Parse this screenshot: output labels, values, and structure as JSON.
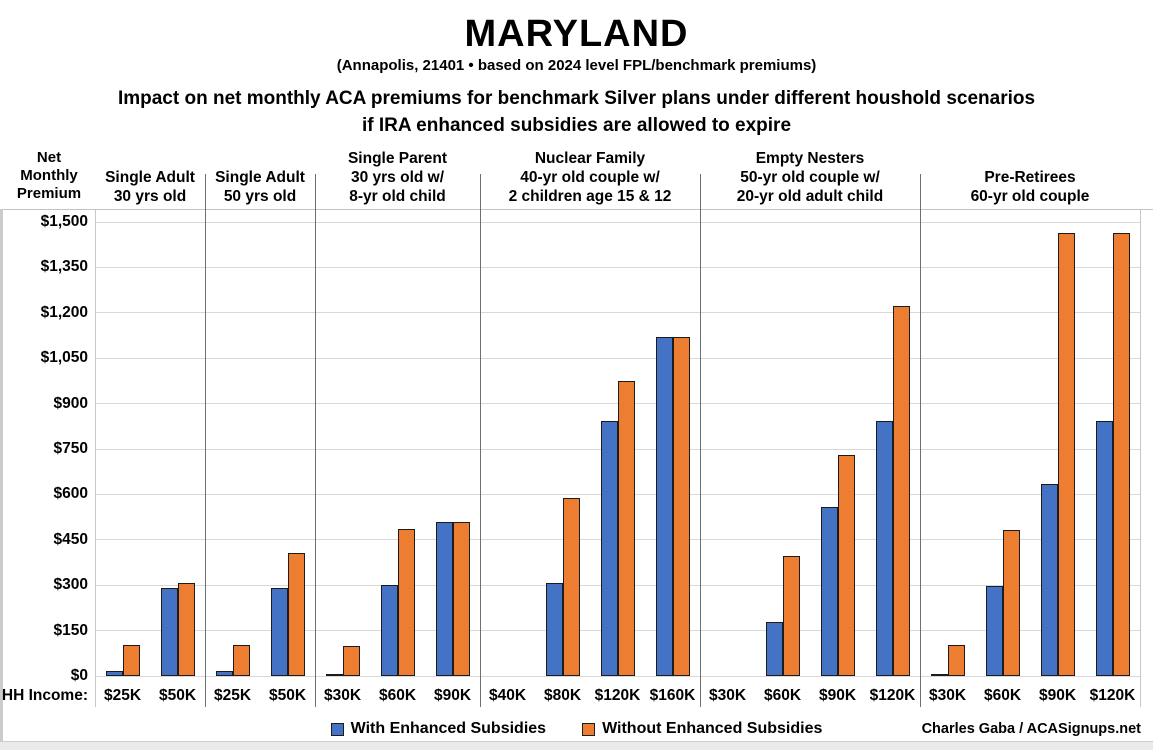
{
  "header": {
    "title": "MARYLAND",
    "subtitle": "(Annapolis, 21401 • based on 2024 level FPL/benchmark premiums)",
    "description_line1": "Impact on net monthly ACA premiums for benchmark Silver plans under different houshold scenarios",
    "description_line2": "if IRA enhanced subsidies are allowed to expire"
  },
  "chart_data": {
    "type": "bar",
    "title": "MARYLAND",
    "subtitle": "(Annapolis, 21401 • based on 2024 level FPL/benchmark premiums)",
    "ylabel": "Net Monthly Premium",
    "ylim": [
      0,
      1500
    ],
    "y_tick_step": 150,
    "grid": true,
    "legend_position": "bottom",
    "y_axis": {
      "title_lines": [
        "Net",
        "Monthly",
        "Premium"
      ],
      "ticks": [
        "$1,500",
        "$1,350",
        "$1,200",
        "$1,050",
        "$900",
        "$750",
        "$600",
        "$450",
        "$300",
        "$150",
        "$0"
      ]
    },
    "x_axis": {
      "label": "HH Income:"
    },
    "series": [
      {
        "name": "With Enhanced Subsidies",
        "color": "#4472C4"
      },
      {
        "name": "Without Enhanced Subsidies",
        "color": "#ED7D31"
      }
    ],
    "groups": [
      {
        "title_lines": [
          "Single Adult",
          "30 yrs old"
        ],
        "categories": [
          "$25K",
          "$50K"
        ],
        "with_enhanced": [
          15,
          292
        ],
        "without_enhanced": [
          104,
          306
        ]
      },
      {
        "title_lines": [
          "Single Adult",
          "50 yrs old"
        ],
        "categories": [
          "$25K",
          "$50K"
        ],
        "with_enhanced": [
          15,
          292
        ],
        "without_enhanced": [
          104,
          405
        ]
      },
      {
        "title_lines": [
          "Single Parent",
          "30 yrs old w/",
          "8-yr old child"
        ],
        "categories": [
          "$30K",
          "$60K",
          "$90K"
        ],
        "with_enhanced": [
          5,
          300,
          508
        ],
        "without_enhanced": [
          100,
          486,
          508
        ]
      },
      {
        "title_lines": [
          "Nuclear Family",
          "40-yr old couple w/",
          "2 children age 15 & 12"
        ],
        "categories": [
          "$40K",
          "$80K",
          "$120K",
          "$160K"
        ],
        "with_enhanced": [
          0,
          308,
          842,
          1120
        ],
        "without_enhanced": [
          0,
          588,
          976,
          1120
        ]
      },
      {
        "title_lines": [
          "Empty Nesters",
          "50-yr old couple w/",
          "20-yr old adult child"
        ],
        "categories": [
          "$30K",
          "$60K",
          "$90K",
          "$120K"
        ],
        "with_enhanced": [
          0,
          180,
          558,
          842
        ],
        "without_enhanced": [
          0,
          395,
          730,
          1223
        ]
      },
      {
        "title_lines": [
          "Pre-Retirees",
          "60-yr old couple"
        ],
        "categories": [
          "$30K",
          "$60K",
          "$90K",
          "$120K"
        ],
        "with_enhanced": [
          8,
          297,
          634,
          842
        ],
        "without_enhanced": [
          101,
          484,
          1464,
          1464
        ]
      }
    ]
  },
  "footer": {
    "credit": "Charles Gaba / ACASignups.net"
  }
}
